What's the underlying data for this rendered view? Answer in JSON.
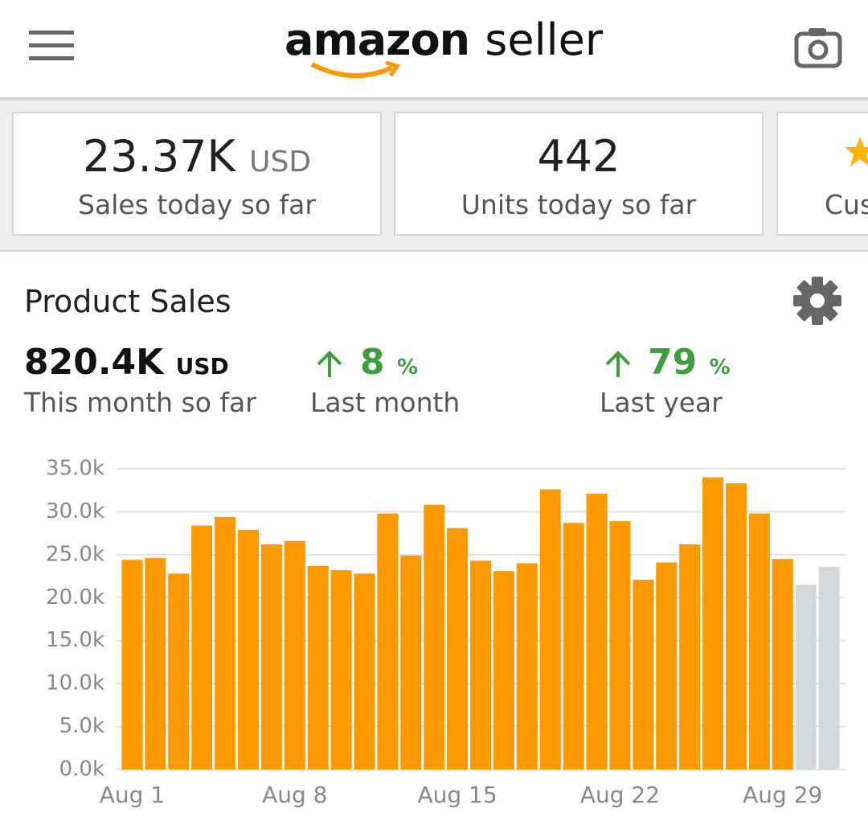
{
  "header": {
    "brand": "amazon",
    "product": "seller"
  },
  "cards": [
    {
      "value": "23.37K",
      "unit": "USD",
      "label": "Sales today so far"
    },
    {
      "value": "442",
      "label": "Units today so far"
    },
    {
      "label": "Cus"
    }
  ],
  "product_sales": {
    "title": "Product Sales",
    "total": "820.4K",
    "total_unit": "USD",
    "total_label": "This month so far",
    "last_month_change": "8",
    "last_month_unit": "%",
    "last_month_label": "Last month",
    "last_year_change": "79",
    "last_year_unit": "%",
    "last_year_label": "Last year"
  },
  "chart_data": {
    "type": "bar",
    "categories": [
      "Aug 1",
      null,
      null,
      null,
      null,
      null,
      null,
      "Aug 8",
      null,
      null,
      null,
      null,
      null,
      null,
      "Aug 15",
      null,
      null,
      null,
      null,
      null,
      null,
      "Aug 22",
      null,
      null,
      null,
      null,
      null,
      null,
      "Aug 29",
      null,
      null
    ],
    "values": [
      24.4,
      24.6,
      22.8,
      28.4,
      29.4,
      27.9,
      26.2,
      26.6,
      23.7,
      23.2,
      22.8,
      29.8,
      24.9,
      30.8,
      28.1,
      24.3,
      23.1,
      24.0,
      32.6,
      28.7,
      32.1,
      28.9,
      22.1,
      24.1,
      26.2,
      34.0,
      33.3,
      29.8,
      24.5,
      21.5,
      23.6
    ],
    "colors": [
      "#ff9900",
      "#ff9900",
      "#ff9900",
      "#ff9900",
      "#ff9900",
      "#ff9900",
      "#ff9900",
      "#ff9900",
      "#ff9900",
      "#ff9900",
      "#ff9900",
      "#ff9900",
      "#ff9900",
      "#ff9900",
      "#ff9900",
      "#ff9900",
      "#ff9900",
      "#ff9900",
      "#ff9900",
      "#ff9900",
      "#ff9900",
      "#ff9900",
      "#ff9900",
      "#ff9900",
      "#ff9900",
      "#ff9900",
      "#ff9900",
      "#ff9900",
      "#ff9900",
      "#d5d8da",
      "#d5d8da"
    ],
    "ylim": [
      0,
      35
    ],
    "yticks": [
      {
        "value": 0,
        "label": "0.0k"
      },
      {
        "value": 5,
        "label": "5.0k"
      },
      {
        "value": 10,
        "label": "10.0k"
      },
      {
        "value": 15,
        "label": "15.0k"
      },
      {
        "value": 20,
        "label": "20.0k"
      },
      {
        "value": 25,
        "label": "25.0k"
      },
      {
        "value": 30,
        "label": "30.0k"
      },
      {
        "value": 35,
        "label": "35.0k"
      }
    ],
    "grid": true
  }
}
